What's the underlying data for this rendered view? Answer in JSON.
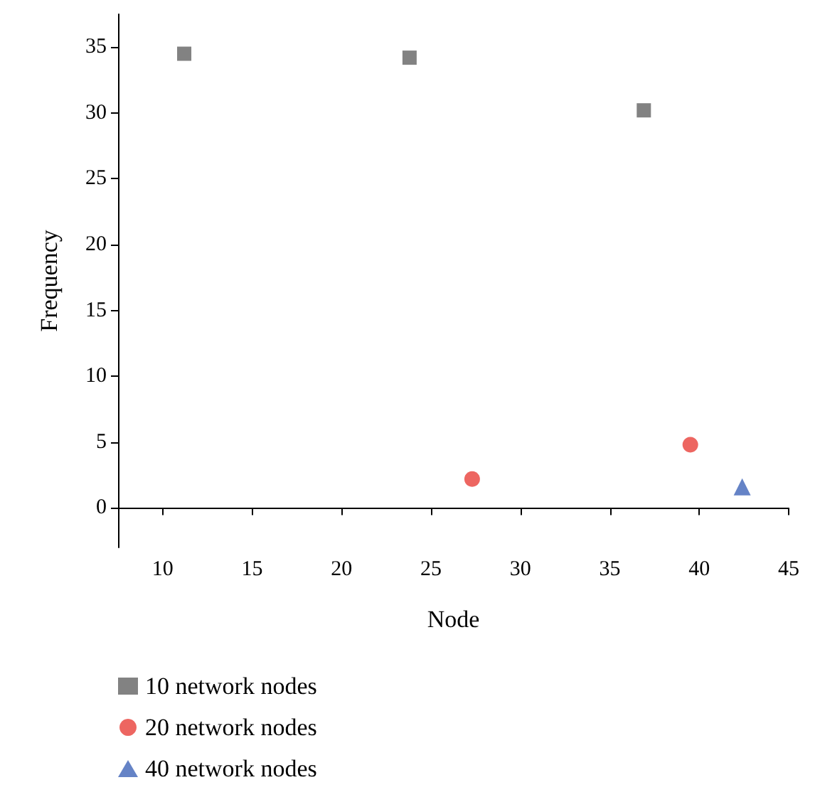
{
  "chart_data": {
    "type": "scatter",
    "xlabel": "Node",
    "ylabel": "Frequency",
    "xlim": [
      7.5,
      45
    ],
    "ylim": [
      -3,
      37.5
    ],
    "xticks": [
      10,
      15,
      20,
      25,
      30,
      35,
      40,
      45
    ],
    "yticks": [
      0,
      5,
      10,
      15,
      20,
      25,
      30,
      35
    ],
    "grid": false,
    "legend": "bottom",
    "series": [
      {
        "name": "10 network nodes",
        "color": "#636363",
        "marker": "square",
        "x": [
          11.2,
          23.8,
          36.9
        ],
        "values": [
          34.5,
          34.2,
          30.2
        ]
      },
      {
        "name": "20 network nodes",
        "color": "#e8403a",
        "marker": "circle",
        "x": [
          27.3,
          39.5
        ],
        "values": [
          2.2,
          4.8
        ]
      },
      {
        "name": "40 network nodes",
        "color": "#3f64b8",
        "marker": "triangle",
        "x": [
          42.4
        ],
        "values": [
          1.6
        ]
      }
    ]
  }
}
